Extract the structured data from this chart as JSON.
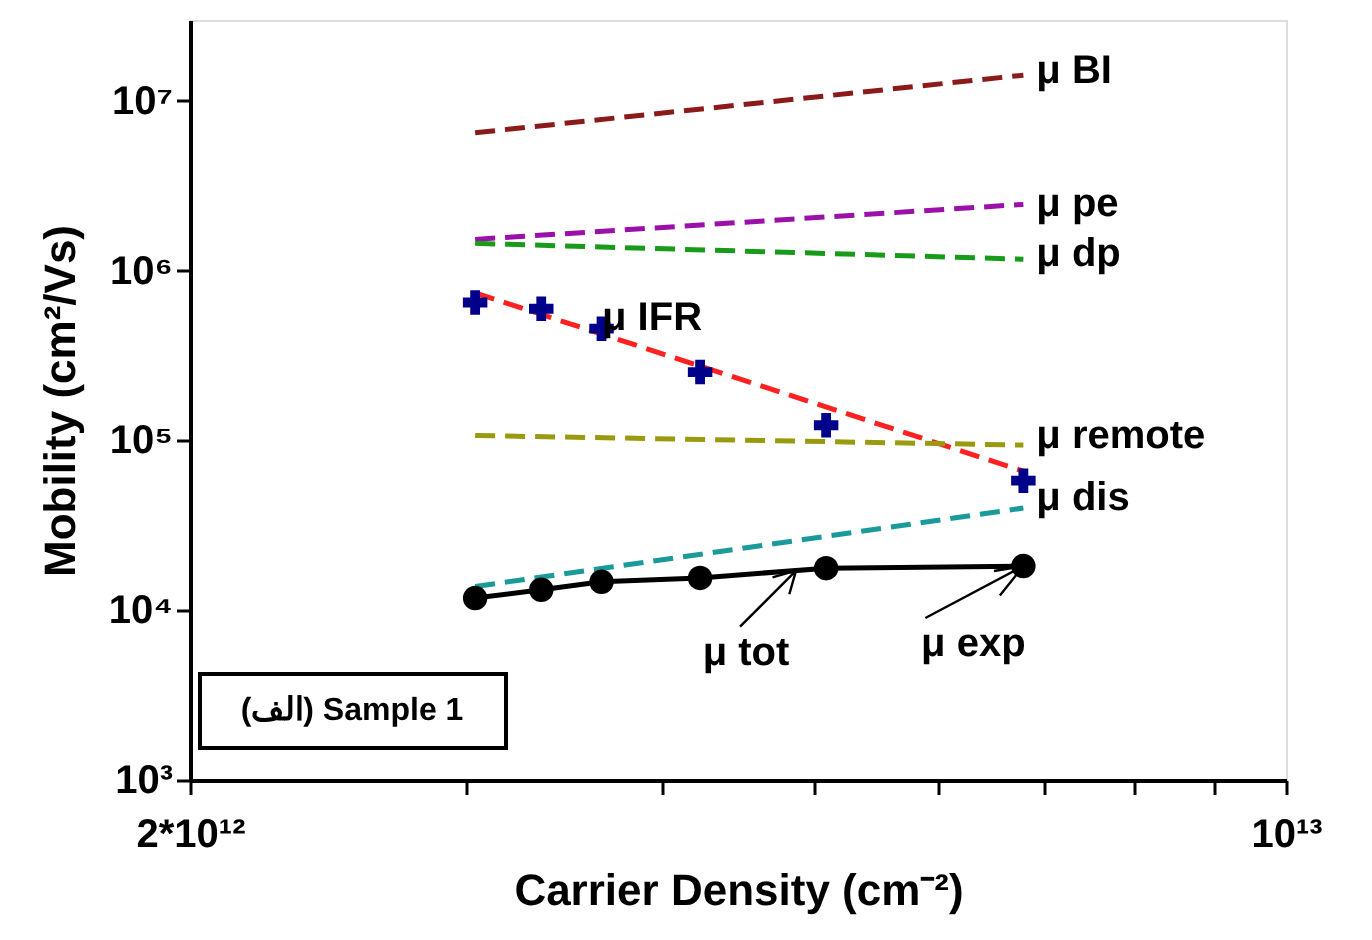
{
  "chart_data": {
    "type": "line",
    "xlabel": "Carrier Density (cm⁻²)",
    "ylabel": "Mobility (cm²/Vs)",
    "log": "xy",
    "grid": false,
    "xlim": [
      2000000000000,
      10000000000000
    ],
    "xticks": [
      {
        "value": 2000000000000,
        "label": "2*10¹²"
      },
      {
        "value": 3000000000000,
        "label": null
      },
      {
        "value": 4000000000000,
        "label": null
      },
      {
        "value": 5000000000000,
        "label": null
      },
      {
        "value": 6000000000000,
        "label": null
      },
      {
        "value": 7000000000000,
        "label": null
      },
      {
        "value": 8000000000000,
        "label": null
      },
      {
        "value": 9000000000000,
        "label": null
      },
      {
        "value": 10000000000000,
        "label": "10¹³"
      }
    ],
    "ylim": [
      1000,
      30000000
    ],
    "yticks": [
      {
        "value": 1000,
        "label": "10³"
      },
      {
        "value": 10000,
        "label": "10⁴"
      },
      {
        "value": 100000,
        "label": "10⁵"
      },
      {
        "value": 1000000,
        "label": "10⁶"
      },
      {
        "value": 10000000,
        "label": "10⁷"
      }
    ],
    "series": [
      {
        "color": "#8b1a1a",
        "line_style": "dashed",
        "marker": "none",
        "x": [
          3040000000000,
          6800000000000
        ],
        "values": [
          6500000,
          14200000
        ]
      },
      {
        "color": "#9b10a8",
        "line_style": "dashed",
        "marker": "none",
        "x": [
          3040000000000,
          6800000000000
        ],
        "values": [
          1530000,
          2460000
        ]
      },
      {
        "color": "#1a9a1a",
        "line_style": "dashed",
        "marker": "none",
        "x": [
          3040000000000,
          6800000000000
        ],
        "values": [
          1450000,
          1170000
        ]
      },
      {
        "color": "#ff2020",
        "line_style": "dashed",
        "marker": "none",
        "x": [
          3040000000000,
          6800000000000
        ],
        "values": [
          740000,
          66000
        ]
      },
      {
        "color": "#9a9a10",
        "line_style": "dashed",
        "marker": "none",
        "x": [
          3040000000000,
          6800000000000
        ],
        "values": [
          107000,
          94000
        ]
      },
      {
        "color": "#1a9a9a",
        "line_style": "dashed",
        "marker": "none",
        "x": [
          3040000000000,
          6800000000000
        ],
        "values": [
          13800,
          40000
        ]
      },
      {
        "color": "#000000",
        "line_style": "solid",
        "marker": "circle",
        "x": [
          3040000000000,
          3350000000000,
          3660000000000,
          4230000000000,
          5090000000000,
          6800000000000
        ],
        "values": [
          11800,
          13200,
          14700,
          15500,
          17700,
          18200
        ]
      },
      {
        "type": "scatter",
        "color": "#00008b",
        "marker": "cross",
        "x": [
          3040000000000,
          3350000000000,
          3660000000000,
          4230000000000,
          5090000000000,
          6800000000000
        ],
        "values": [
          650000,
          597000,
          456000,
          253000,
          123000,
          58000
        ]
      }
    ],
    "annotations": [
      {
        "text": "μ BI",
        "x": 6870000000000,
        "y": 15000000
      },
      {
        "text": "μ pe",
        "x": 6870000000000,
        "y": 2460000
      },
      {
        "text": "μ dp",
        "x": 6870000000000,
        "y": 1260000
      },
      "μ IFR",
      {
        "text": "μ remote",
        "x": 6870000000000,
        "y": 107000
      },
      {
        "text": "μ dis",
        "x": 6870000000000,
        "y": 46000
      },
      {
        "text": "μ tot",
        "x": 4870000000000,
        "y": 17100
      },
      {
        "text": "μ exp",
        "x": 6800000000000,
        "y": 18200
      },
      "(الف) Sample 1"
    ]
  }
}
